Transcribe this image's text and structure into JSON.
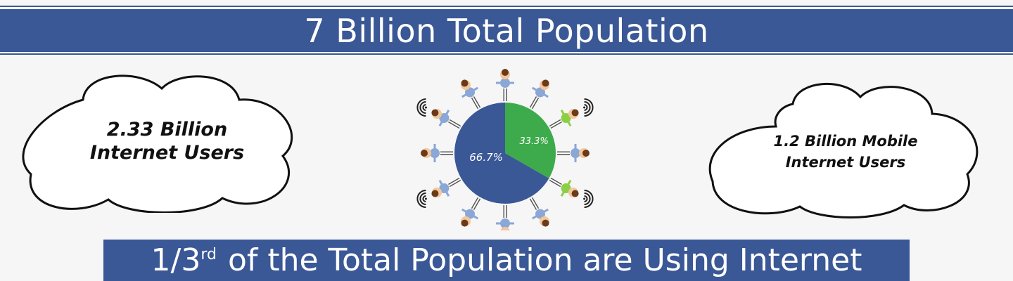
{
  "header": {
    "title": "7 Billion Total Population"
  },
  "left_cloud": {
    "line1": "2.33 Billion",
    "line2": "Internet Users"
  },
  "right_cloud": {
    "line1": "1.2 Billion Mobile",
    "line2": "Internet Users"
  },
  "footer": {
    "prefix": "1/3",
    "superscript": "rd",
    "rest": " of the Total Population are Using Internet"
  },
  "chart_data": {
    "type": "pie",
    "slices": [
      {
        "label": "33.3%",
        "value": 33.3,
        "color": "#3dab4b"
      },
      {
        "label": "66.7%",
        "value": 66.7,
        "color": "#3a5796"
      }
    ]
  },
  "colors": {
    "header_bg": "#3a5796",
    "footer_bg": "#3a5796",
    "pie_blue": "#3a5796",
    "pie_green": "#3dab4b",
    "person_blue": "#8ba7d6",
    "person_green": "#8ccf45",
    "skin": "#f2c79c",
    "hair": "#6b3a18"
  },
  "icons": [
    "cloud-icon",
    "person-icon",
    "wifi-signal-icon"
  ]
}
